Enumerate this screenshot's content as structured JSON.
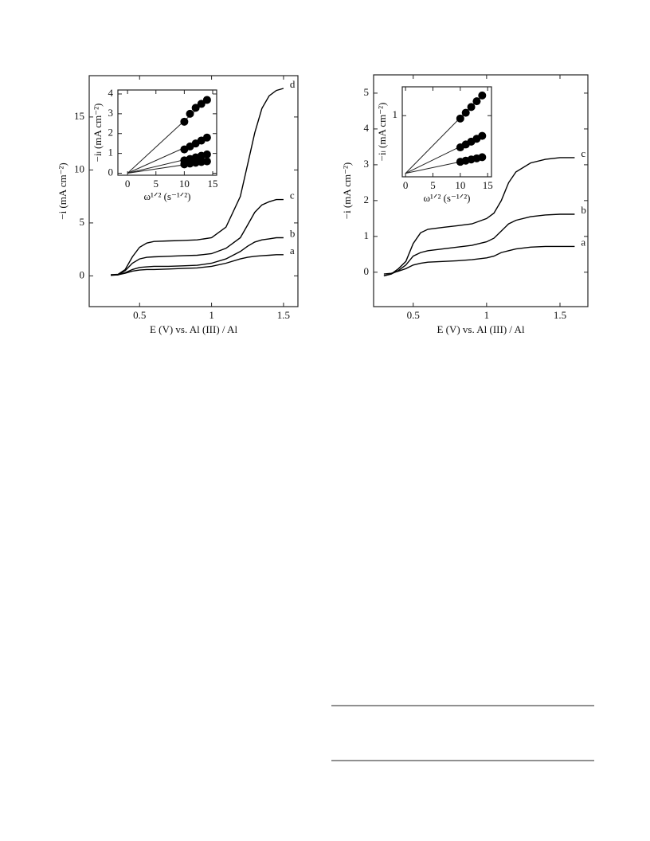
{
  "chart_data": [
    {
      "type": "line",
      "xlabel": "E (V) vs. Al (III) / Al",
      "ylabel": "−i (mA cm⁻²)",
      "x": [
        0.3,
        0.35,
        0.4,
        0.45,
        0.5,
        0.55,
        0.6,
        0.7,
        0.8,
        0.9,
        1.0,
        1.1,
        1.2,
        1.25,
        1.3,
        1.35,
        1.4,
        1.45,
        1.5
      ],
      "series": [
        {
          "name": "a",
          "color": "#000000",
          "values": [
            0.05,
            0.1,
            0.25,
            0.45,
            0.55,
            0.6,
            0.6,
            0.65,
            0.7,
            0.75,
            0.9,
            1.2,
            1.6,
            1.75,
            1.85,
            1.9,
            1.95,
            2.0,
            2.0
          ]
        },
        {
          "name": "b",
          "color": "#000000",
          "values": [
            0.1,
            0.1,
            0.3,
            0.6,
            0.8,
            0.85,
            0.9,
            0.9,
            0.95,
            1.0,
            1.2,
            1.6,
            2.3,
            2.8,
            3.2,
            3.4,
            3.5,
            3.6,
            3.6
          ]
        },
        {
          "name": "c",
          "color": "#000000",
          "values": [
            0.1,
            0.1,
            0.5,
            1.2,
            1.6,
            1.75,
            1.8,
            1.85,
            1.9,
            1.95,
            2.1,
            2.6,
            3.6,
            4.8,
            6.0,
            6.7,
            7.0,
            7.2,
            7.2
          ]
        },
        {
          "name": "d",
          "color": "#000000",
          "values": [
            0.1,
            0.15,
            0.6,
            1.8,
            2.7,
            3.1,
            3.25,
            3.3,
            3.35,
            3.4,
            3.6,
            4.6,
            7.5,
            10.5,
            13.5,
            15.8,
            17.0,
            17.5,
            17.7
          ]
        }
      ],
      "xlim": [
        0.15,
        1.6
      ],
      "ylim": [
        -2.9,
        18.9
      ],
      "xticks": [
        0.5,
        1,
        1.5
      ],
      "yticks": [
        0,
        5,
        10,
        15
      ]
    },
    {
      "type": "scatter",
      "xlabel": "ω¹ᐟ² (s⁻¹ᐟ²)",
      "ylabel": "−iₗ (mA cm⁻²)",
      "x": [
        10,
        11,
        12,
        13,
        14
      ],
      "series": [
        {
          "color": "#000000",
          "values": [
            2.6,
            3.0,
            3.3,
            3.5,
            3.7
          ]
        },
        {
          "color": "#000000",
          "values": [
            1.2,
            1.35,
            1.5,
            1.65,
            1.8
          ]
        },
        {
          "color": "#000000",
          "values": [
            0.65,
            0.72,
            0.8,
            0.88,
            0.95
          ]
        },
        {
          "color": "#000000",
          "values": [
            0.45,
            0.49,
            0.53,
            0.57,
            0.6
          ]
        }
      ],
      "xlim": [
        -1.7,
        15.7
      ],
      "ylim": [
        -0.1,
        4.2
      ],
      "xticks": [
        0,
        5,
        10,
        15
      ],
      "yticks": [
        0,
        1,
        2,
        3,
        4
      ]
    },
    {
      "type": "line",
      "xlabel": "E (V) vs. Al (III) / Al",
      "ylabel": "−i (mA cm⁻²)",
      "x": [
        0.3,
        0.35,
        0.4,
        0.45,
        0.5,
        0.55,
        0.6,
        0.7,
        0.8,
        0.9,
        1.0,
        1.05,
        1.1,
        1.15,
        1.2,
        1.3,
        1.4,
        1.5,
        1.6
      ],
      "series": [
        {
          "name": "a",
          "color": "#000000",
          "values": [
            -0.05,
            -0.03,
            0.03,
            0.1,
            0.2,
            0.25,
            0.28,
            0.3,
            0.32,
            0.35,
            0.4,
            0.45,
            0.55,
            0.6,
            0.65,
            0.7,
            0.72,
            0.72,
            0.72
          ]
        },
        {
          "name": "b",
          "color": "#000000",
          "values": [
            -0.1,
            -0.05,
            0.05,
            0.2,
            0.45,
            0.55,
            0.6,
            0.65,
            0.7,
            0.75,
            0.85,
            0.95,
            1.15,
            1.35,
            1.45,
            1.55,
            1.6,
            1.62,
            1.62
          ]
        },
        {
          "name": "c",
          "color": "#000000",
          "values": [
            -0.1,
            -0.05,
            0.1,
            0.3,
            0.8,
            1.1,
            1.2,
            1.25,
            1.3,
            1.35,
            1.5,
            1.65,
            2.0,
            2.5,
            2.8,
            3.05,
            3.15,
            3.2,
            3.2
          ]
        }
      ],
      "xlim": [
        0.23,
        1.69
      ],
      "ylim": [
        -0.96,
        5.51
      ],
      "xticks": [
        0.5,
        1,
        1.5
      ],
      "yticks": [
        0,
        1,
        2,
        3,
        4,
        5
      ]
    },
    {
      "type": "scatter",
      "xlabel": "ω¹ᐟ² (s⁻¹ᐟ²)",
      "ylabel": "−iₗ (mA cm⁻²)",
      "x": [
        10,
        11,
        12,
        13,
        14
      ],
      "series": [
        {
          "color": "#000000",
          "values": [
            0.95,
            1.05,
            1.15,
            1.25,
            1.35
          ]
        },
        {
          "color": "#000000",
          "values": [
            0.45,
            0.5,
            0.55,
            0.6,
            0.65
          ]
        },
        {
          "color": "#000000",
          "values": [
            0.2,
            0.22,
            0.24,
            0.26,
            0.28
          ]
        }
      ],
      "xlim": [
        -0.6,
        15.7
      ],
      "ylim": [
        -0.06,
        1.5
      ],
      "xticks": [
        0,
        5,
        10,
        15
      ],
      "yticks": [
        1
      ]
    }
  ]
}
